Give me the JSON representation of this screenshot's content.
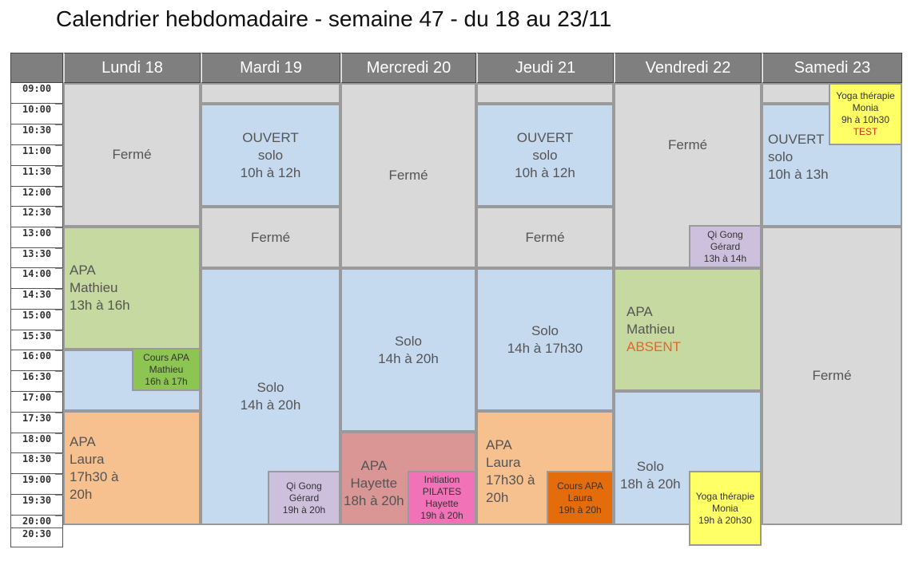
{
  "title": "Calendrier hebdomadaire - semaine 47 - du 18 au 23/11",
  "days": [
    "Lundi 18",
    "Mardi 19",
    "Mercredi 20",
    "Jeudi 21",
    "Vendredi 22",
    "Samedi 23"
  ],
  "times": [
    "09:00",
    "10:00",
    "10:30",
    "11:00",
    "11:30",
    "12:00",
    "12:30",
    "13:00",
    "13:30",
    "14:00",
    "14:30",
    "15:00",
    "15:30",
    "16:00",
    "16:30",
    "17:00",
    "17:30",
    "18:00",
    "18:30",
    "19:00",
    "19:30",
    "20:00",
    "20:30"
  ],
  "colors": {
    "closed": "#d9d9d9",
    "solo": "#c5d9ef",
    "apa_green": "#c5d9a0",
    "apa_orange": "#f7c08f",
    "cours_apa_green": "#8cc551",
    "qigong": "#ccc0dc",
    "yoga": "#ffff66",
    "hayette": "#d99694",
    "pilates": "#f272b8",
    "cours_apa_laura": "#e46c0a"
  },
  "events": {
    "mon_closed": "Fermé",
    "mon_apa": [
      "APA",
      "Mathieu",
      "13h à 16h"
    ],
    "mon_cours_apa": [
      "Cours APA",
      "Mathieu",
      "16h à 17h"
    ],
    "mon_apa_laura": [
      "APA",
      "Laura",
      "17h30 à",
      "20h"
    ],
    "tue_open": [
      "OUVERT",
      "solo",
      "10h à 12h"
    ],
    "tue_closed": "Fermé",
    "tue_solo": [
      "Solo",
      "14h à 20h"
    ],
    "tue_qigong": [
      "Qi Gong",
      "Gérard",
      "19h à 20h"
    ],
    "wed_closed": "Fermé",
    "wed_solo": [
      "Solo",
      "14h à 20h"
    ],
    "wed_apa": [
      "APA",
      "Hayette",
      "18h à 20h"
    ],
    "wed_pilates": [
      "Initiation",
      "PILATES",
      "Hayette",
      "19h à 20h"
    ],
    "thu_open": [
      "OUVERT",
      "solo",
      "10h à 12h"
    ],
    "thu_closed": "Fermé",
    "thu_solo": [
      "Solo",
      "14h à 17h30"
    ],
    "thu_apa": [
      "APA",
      "Laura",
      "17h30 à",
      "20h"
    ],
    "thu_cours_apa": [
      "Cours APA",
      "Laura",
      "19h à 20h"
    ],
    "fri_closed": "Fermé",
    "fri_qigong": [
      "Qi Gong",
      "Gérard",
      "13h à 14h"
    ],
    "fri_apa": [
      "APA",
      "Mathieu",
      "ABSENT"
    ],
    "fri_solo": [
      "Solo",
      "18h à 20h"
    ],
    "fri_yoga": [
      "Yoga thérapie",
      "Monia",
      "19h à 20h30"
    ],
    "sat_yoga": [
      "Yoga thérapie",
      "Monia",
      "9h à 10h30",
      "TEST"
    ],
    "sat_open": [
      "OUVERT",
      "solo",
      "10h à 13h"
    ],
    "sat_closed": "Fermé"
  }
}
